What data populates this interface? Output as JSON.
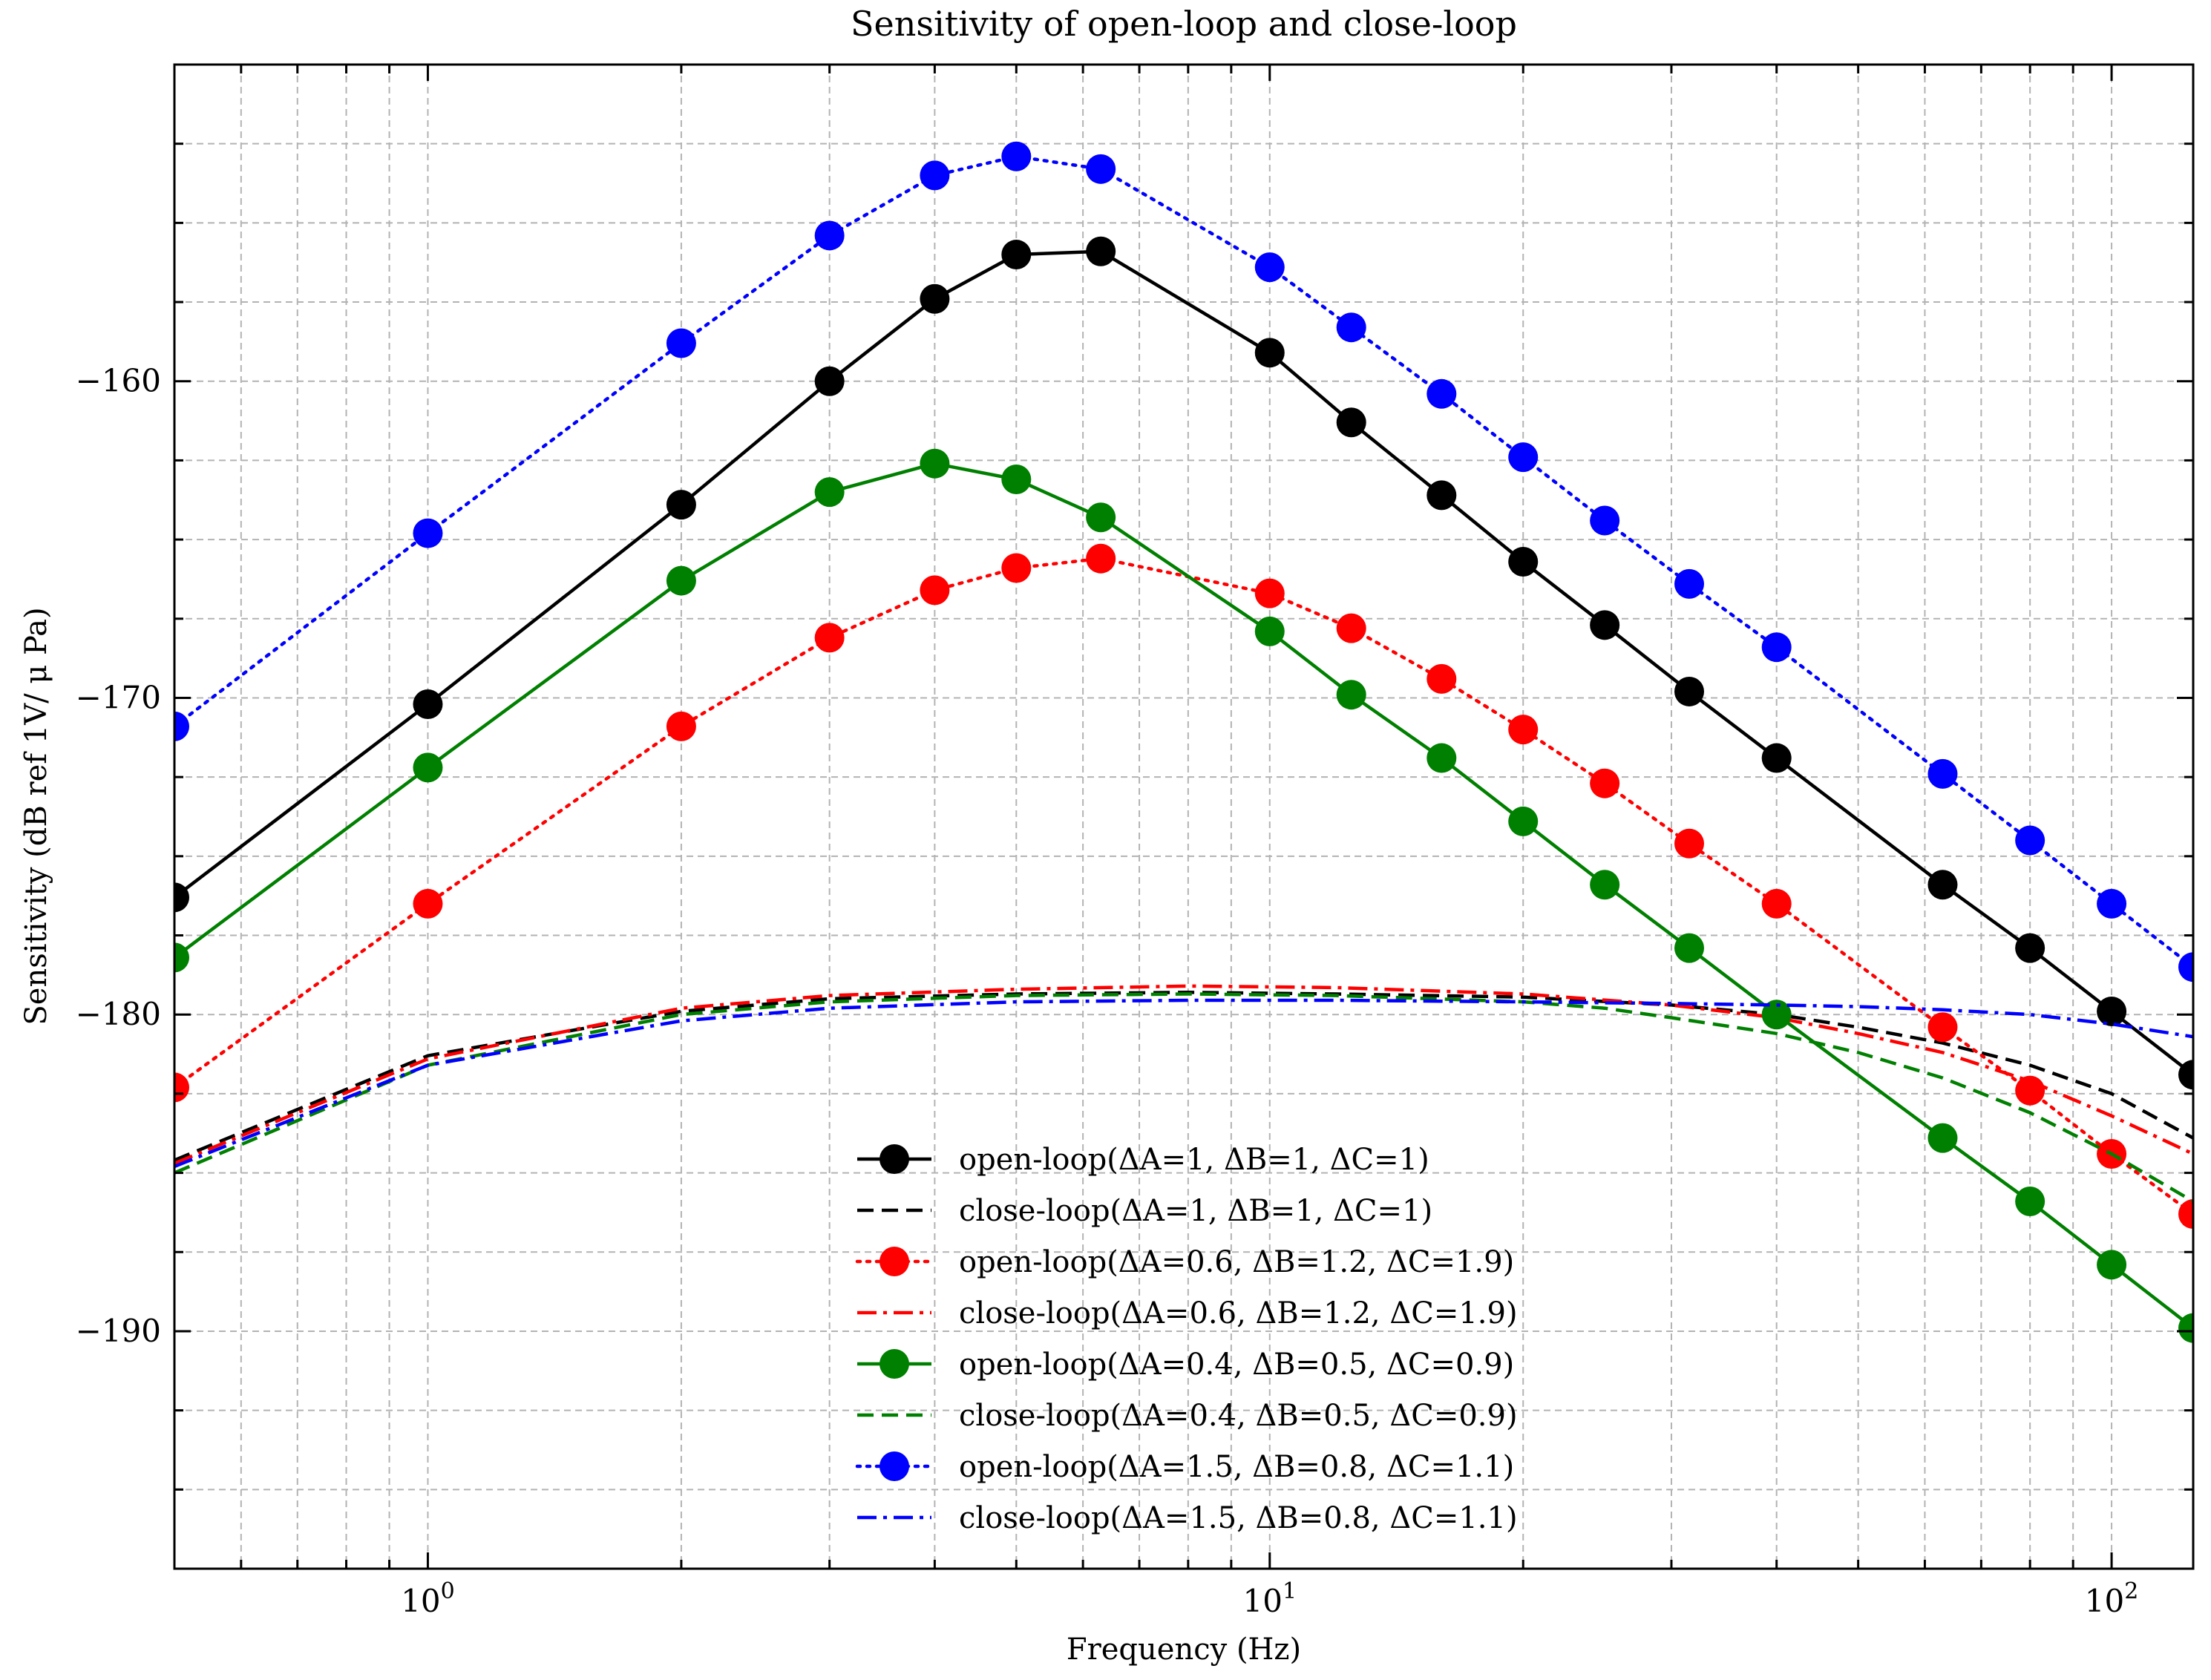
{
  "chart_data": {
    "type": "line",
    "title": "Sensitivity of open-loop and close-loop",
    "xlabel": "Frequency (Hz)",
    "ylabel": "Sensitivity (dB ref 1V/ μ Pa)",
    "xscale": "log",
    "xlim": [
      0.5,
      125
    ],
    "ylim": [
      -197.5,
      -150
    ],
    "grid": true,
    "legend_position": "lower-center",
    "x_ticks": [
      {
        "value": 1,
        "base": "10",
        "exp": "0"
      },
      {
        "value": 10,
        "base": "10",
        "exp": "1"
      },
      {
        "value": 100,
        "base": "10",
        "exp": "2"
      }
    ],
    "y_ticks": [
      {
        "value": -160,
        "label": "−160"
      },
      {
        "value": -170,
        "label": "−170"
      },
      {
        "value": -180,
        "label": "−180"
      },
      {
        "value": -190,
        "label": "−190"
      }
    ],
    "series": [
      {
        "name": "open-loop(ΔA=1, ΔB=1, ΔC=1)",
        "color": "#000000",
        "dash": "solid",
        "markers": true,
        "x": [
          0.5,
          1,
          2,
          3,
          4,
          5,
          6.3,
          10,
          12.5,
          16,
          20,
          25,
          31.5,
          40,
          63,
          80,
          100,
          125
        ],
        "y": [
          -176.3,
          -170.2,
          -163.9,
          -160.0,
          -157.4,
          -156.0,
          -155.9,
          -159.1,
          -161.3,
          -163.6,
          -165.7,
          -167.7,
          -169.8,
          -171.9,
          -175.9,
          -177.9,
          -179.9,
          -181.9
        ]
      },
      {
        "name": "close-loop(ΔA=1, ΔB=1, ΔC=1)",
        "color": "#000000",
        "dash": "dashed",
        "markers": false,
        "x": [
          0.5,
          1,
          2,
          3,
          5,
          8,
          12,
          20,
          30,
          40,
          50,
          63,
          80,
          100,
          125
        ],
        "y": [
          -184.6,
          -181.3,
          -179.9,
          -179.5,
          -179.35,
          -179.3,
          -179.35,
          -179.45,
          -179.7,
          -180.0,
          -180.4,
          -180.9,
          -181.6,
          -182.5,
          -183.9
        ]
      },
      {
        "name": "open-loop(ΔA=0.6, ΔB=1.2, ΔC=1.9)",
        "color": "#ff0000",
        "dash": "dotted",
        "markers": true,
        "x": [
          0.5,
          1,
          2,
          3,
          4,
          5,
          6.3,
          10,
          12.5,
          16,
          20,
          25,
          31.5,
          40,
          63,
          80,
          100,
          125
        ],
        "y": [
          -182.3,
          -176.5,
          -170.9,
          -168.1,
          -166.6,
          -165.9,
          -165.6,
          -166.7,
          -167.8,
          -169.4,
          -171.0,
          -172.7,
          -174.6,
          -176.5,
          -180.4,
          -182.4,
          -184.4,
          -186.3
        ]
      },
      {
        "name": "close-loop(ΔA=0.6, ΔB=1.2, ΔC=1.9)",
        "color": "#ff0000",
        "dash": "dashdot",
        "markers": false,
        "x": [
          0.5,
          1,
          2,
          3,
          5,
          8,
          12,
          20,
          30,
          40,
          50,
          63,
          80,
          100,
          125
        ],
        "y": [
          -184.7,
          -181.4,
          -179.8,
          -179.4,
          -179.2,
          -179.1,
          -179.15,
          -179.35,
          -179.7,
          -180.1,
          -180.6,
          -181.2,
          -182.1,
          -183.2,
          -184.4
        ]
      },
      {
        "name": "open-loop(ΔA=0.4, ΔB=0.5, ΔC=0.9)",
        "color": "#008000",
        "dash": "solid",
        "markers": true,
        "x": [
          0.5,
          1,
          2,
          3,
          4,
          5,
          6.3,
          10,
          12.5,
          16,
          20,
          25,
          31.5,
          40,
          63,
          80,
          100,
          125
        ],
        "y": [
          -178.2,
          -172.2,
          -166.3,
          -163.5,
          -162.6,
          -163.1,
          -164.3,
          -167.9,
          -169.9,
          -171.9,
          -173.9,
          -175.9,
          -177.9,
          -180.0,
          -183.9,
          -185.9,
          -187.9,
          -189.9
        ]
      },
      {
        "name": "close-loop(ΔA=0.4, ΔB=0.5, ΔC=0.9)",
        "color": "#008000",
        "dash": "dashed",
        "markers": false,
        "x": [
          0.5,
          1,
          2,
          3,
          5,
          8,
          12,
          20,
          25,
          30,
          40,
          50,
          63,
          80,
          100,
          125
        ],
        "y": [
          -185.0,
          -181.6,
          -180.0,
          -179.6,
          -179.4,
          -179.35,
          -179.4,
          -179.6,
          -179.8,
          -180.1,
          -180.6,
          -181.2,
          -182.0,
          -183.1,
          -184.4,
          -185.9
        ]
      },
      {
        "name": "open-loop(ΔA=1.5, ΔB=0.8, ΔC=1.1)",
        "color": "#0000ff",
        "dash": "dotted",
        "markers": true,
        "x": [
          0.5,
          1,
          2,
          3,
          4,
          5,
          6.3,
          10,
          12.5,
          16,
          20,
          25,
          31.5,
          40,
          63,
          80,
          100,
          125
        ],
        "y": [
          -170.9,
          -164.8,
          -158.8,
          -155.4,
          -153.5,
          -152.9,
          -153.3,
          -156.4,
          -158.3,
          -160.4,
          -162.4,
          -164.4,
          -166.4,
          -168.4,
          -172.4,
          -174.5,
          -176.5,
          -178.5
        ]
      },
      {
        "name": "close-loop(ΔA=1.5, ΔB=0.8, ΔC=1.1)",
        "color": "#0000ff",
        "dash": "dashdot",
        "markers": false,
        "x": [
          0.5,
          1,
          2,
          3,
          5,
          8,
          12,
          20,
          30,
          40,
          50,
          63,
          80,
          100,
          125
        ],
        "y": [
          -184.8,
          -181.6,
          -180.2,
          -179.8,
          -179.6,
          -179.55,
          -179.55,
          -179.6,
          -179.65,
          -179.7,
          -179.75,
          -179.85,
          -180.0,
          -180.3,
          -180.7
        ]
      }
    ]
  }
}
